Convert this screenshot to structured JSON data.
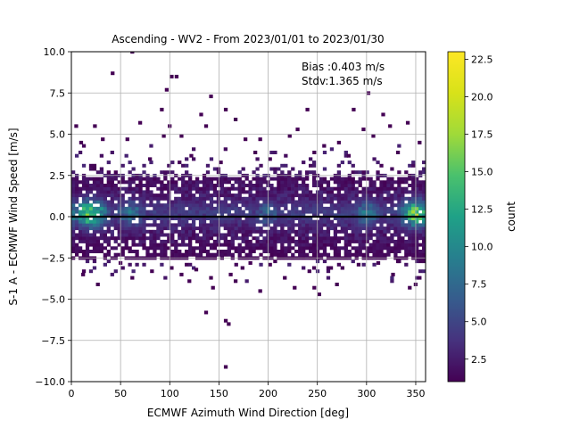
{
  "chart_data": {
    "type": "heatmap",
    "title": "Ascending - WV2 - From 2023/01/01 to 2023/01/30",
    "xlabel": "ECMWF Azimuth Wind Direction [deg]",
    "ylabel": "S-1 A - ECMWF Wind Speed [m/s]",
    "xlim": [
      0,
      360
    ],
    "ylim": [
      -10,
      10
    ],
    "grid": true,
    "x_ticks": [
      "0",
      "50",
      "100",
      "150",
      "200",
      "250",
      "300",
      "350"
    ],
    "y_ticks": [
      "−10.0",
      "−7.5",
      "−5.0",
      "−2.5",
      "0.0",
      "2.5",
      "5.0",
      "7.5",
      "10.0"
    ],
    "colorbar": {
      "label": "count",
      "colormap": "viridis",
      "range": [
        1,
        23
      ],
      "ticks": [
        "2.5",
        "5.0",
        "7.5",
        "10.0",
        "12.5",
        "15.0",
        "17.5",
        "20.0",
        "22.5"
      ]
    },
    "annotations": [
      "Bias :0.403 m/s",
      "Stdv:1.365 m/s"
    ],
    "bias_line_y": 0,
    "bin_width_deg": 3.6,
    "bin_height_ms": 0.2,
    "density_profile": {
      "center_y": 0.2,
      "core_y_range": [
        -2.5,
        2.5
      ],
      "peak_counts_near_x": [
        [
          20,
          23
        ],
        [
          350,
          22
        ],
        [
          60,
          12
        ],
        [
          200,
          10
        ],
        [
          300,
          12
        ]
      ]
    },
    "outliers": [
      [
        3,
        5.4
      ],
      [
        8,
        4.4
      ],
      [
        22,
        5.4
      ],
      [
        30,
        4.6
      ],
      [
        40,
        8.6
      ],
      [
        55,
        4.6
      ],
      [
        60,
        9.9
      ],
      [
        68,
        5.6
      ],
      [
        78,
        3.4
      ],
      [
        90,
        6.4
      ],
      [
        92,
        4.8
      ],
      [
        95,
        7.6
      ],
      [
        98,
        5.4
      ],
      [
        100,
        8.4
      ],
      [
        105,
        8.4
      ],
      [
        110,
        4.8
      ],
      [
        120,
        3.6
      ],
      [
        130,
        6.1
      ],
      [
        135,
        5.4
      ],
      [
        140,
        7.2
      ],
      [
        150,
        3.2
      ],
      [
        155,
        6.4
      ],
      [
        165,
        5.8
      ],
      [
        175,
        4.6
      ],
      [
        185,
        3.8
      ],
      [
        190,
        4.6
      ],
      [
        200,
        3.4
      ],
      [
        220,
        4.8
      ],
      [
        228,
        5.2
      ],
      [
        238,
        6.4
      ],
      [
        245,
        3.8
      ],
      [
        255,
        4.2
      ],
      [
        270,
        4.4
      ],
      [
        280,
        3.6
      ],
      [
        285,
        6.4
      ],
      [
        295,
        5.2
      ],
      [
        300,
        7.4
      ],
      [
        305,
        4.8
      ],
      [
        315,
        6.1
      ],
      [
        322,
        5.4
      ],
      [
        330,
        3.8
      ],
      [
        340,
        5.6
      ],
      [
        352,
        4.4
      ],
      [
        10,
        -3.6
      ],
      [
        25,
        -4.2
      ],
      [
        48,
        -2.9
      ],
      [
        60,
        -3.8
      ],
      [
        80,
        -3.4
      ],
      [
        100,
        -3.2
      ],
      [
        110,
        -3.6
      ],
      [
        118,
        -4.0
      ],
      [
        125,
        -3.3
      ],
      [
        135,
        -5.9
      ],
      [
        140,
        -3.8
      ],
      [
        142,
        -4.4
      ],
      [
        155,
        -6.4
      ],
      [
        158,
        -6.6
      ],
      [
        155,
        -9.2
      ],
      [
        160,
        -3.6
      ],
      [
        165,
        -4.0
      ],
      [
        172,
        -3.2
      ],
      [
        180,
        -2.9
      ],
      [
        190,
        -4.6
      ],
      [
        200,
        -3.0
      ],
      [
        215,
        -3.8
      ],
      [
        225,
        -4.4
      ],
      [
        240,
        -3.4
      ],
      [
        245,
        -4.4
      ],
      [
        250,
        -4.8
      ],
      [
        262,
        -3.2
      ],
      [
        268,
        -4.2
      ],
      [
        290,
        -3.0
      ],
      [
        310,
        -2.9
      ],
      [
        325,
        -3.6
      ],
      [
        330,
        -2.8
      ],
      [
        342,
        -4.4
      ],
      [
        348,
        -4.2
      ],
      [
        352,
        -3.8
      ]
    ]
  }
}
